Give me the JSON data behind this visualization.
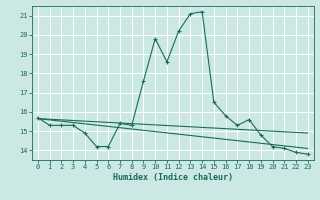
{
  "xlabel": "Humidex (Indice chaleur)",
  "bg_color": "#cce8e4",
  "grid_color": "#ffffff",
  "line_color": "#1a6b5a",
  "xlim": [
    -0.5,
    23.5
  ],
  "ylim": [
    13.5,
    21.5
  ],
  "xticks": [
    0,
    1,
    2,
    3,
    4,
    5,
    6,
    7,
    8,
    9,
    10,
    11,
    12,
    13,
    14,
    15,
    16,
    17,
    18,
    19,
    20,
    21,
    22,
    23
  ],
  "yticks": [
    14,
    15,
    16,
    17,
    18,
    19,
    20,
    21
  ],
  "series1_x": [
    0,
    1,
    2,
    3,
    4,
    5,
    6,
    7,
    8,
    9,
    10,
    11,
    12,
    13,
    14,
    15,
    16,
    17,
    18,
    19,
    20,
    21,
    22,
    23
  ],
  "series1_y": [
    15.7,
    15.3,
    15.3,
    15.3,
    14.9,
    14.2,
    14.2,
    15.4,
    15.3,
    17.6,
    19.8,
    18.6,
    20.2,
    21.1,
    21.2,
    16.5,
    15.8,
    15.3,
    15.6,
    14.8,
    14.2,
    14.1,
    13.9,
    13.8
  ],
  "series2_x": [
    0,
    23
  ],
  "series2_y": [
    15.65,
    14.1
  ],
  "series3_x": [
    0,
    23
  ],
  "series3_y": [
    15.65,
    14.9
  ]
}
